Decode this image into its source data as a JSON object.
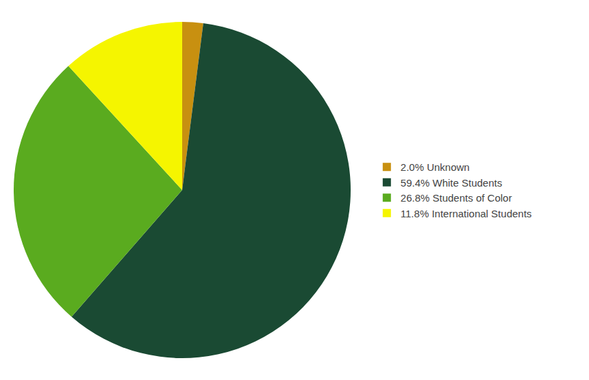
{
  "chart_data": {
    "type": "pie",
    "categories": [
      "2.0% Unknown",
      "59.4% White Students",
      "26.8% Students of Color",
      "11.8% International Students"
    ],
    "values": [
      2.0,
      59.4,
      26.8,
      11.8
    ],
    "colors": [
      "#c89010",
      "#1a4a33",
      "#5aab1f",
      "#f5f500"
    ],
    "legend": "right"
  }
}
